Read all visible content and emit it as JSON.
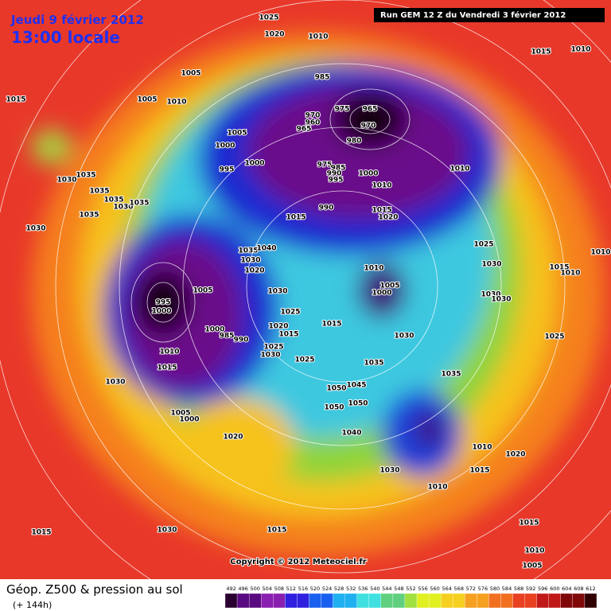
{
  "header": {
    "date": "Jeudi 9 février 2012",
    "time": "13:00 locale",
    "run": "Run GEM 12 Z du Vendredi 3 février 2012"
  },
  "isobar_labels": [
    1025,
    1020,
    1010,
    1015,
    1010,
    1015,
    1005,
    1005,
    1010,
    985,
    975,
    970,
    960,
    965,
    965,
    970,
    980,
    1000,
    1005,
    1000,
    995,
    975,
    985,
    990,
    995,
    1000,
    1010,
    1010,
    1015,
    1020,
    990,
    1015,
    1035,
    1030,
    1035,
    1035,
    1030,
    1035,
    1035,
    1030,
    1035,
    1040,
    1030,
    1020,
    1025,
    1030,
    1015,
    1010,
    1010,
    1005,
    1000,
    1010,
    1030,
    1030,
    1005,
    995,
    1000,
    1030,
    1025,
    1020,
    1015,
    1000,
    985,
    990,
    1015,
    1030,
    1025,
    1010,
    1015,
    1025,
    1025,
    1030,
    1035,
    1035,
    1030,
    1050,
    1045,
    1050,
    1050,
    1040,
    1005,
    1000,
    1020,
    1010,
    1020,
    1030,
    1015,
    1010,
    1015,
    1030,
    1015,
    1015,
    1010,
    1005
  ],
  "copyright": "Copyright © 2012 Meteociel.fr",
  "footer": {
    "title": "Géop. Z500 & pression au sol",
    "lead": "(+ 144h)"
  },
  "legend": [
    492,
    496,
    500,
    504,
    508,
    512,
    516,
    520,
    524,
    528,
    532,
    536,
    540,
    544,
    548,
    552,
    556,
    560,
    564,
    568,
    572,
    576,
    580,
    584,
    588,
    592,
    596,
    600,
    604,
    608,
    612
  ]
}
